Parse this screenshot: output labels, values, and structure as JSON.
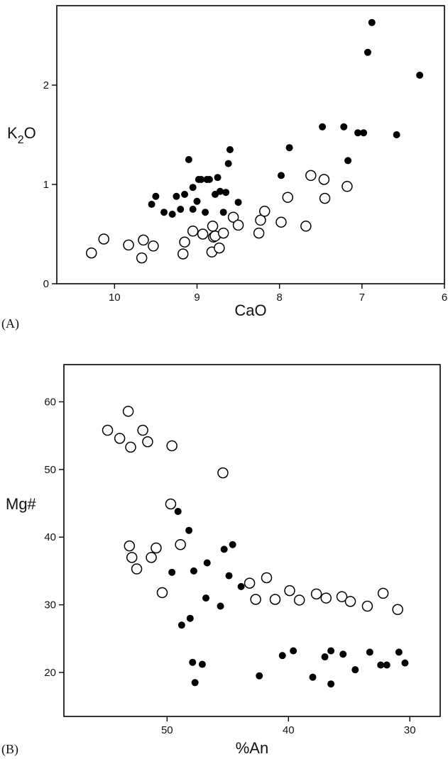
{
  "chart_data": [
    {
      "type": "scatter",
      "panel_label": "(A)",
      "xlabel": "CaO",
      "ylabel_main": "K",
      "ylabel_sub": "2",
      "ylabel_tail": "O",
      "x_reversed": true,
      "xlim": [
        10.7,
        6.0
      ],
      "ylim": [
        0,
        2.8
      ],
      "x_ticks": [
        "10",
        "9",
        "8",
        "7",
        "6"
      ],
      "x_tick_values": [
        10,
        9,
        8,
        7,
        6
      ],
      "y_ticks": [
        "0",
        "1",
        "2"
      ],
      "y_tick_values": [
        0,
        1,
        2
      ],
      "series": [
        {
          "marker": "filled",
          "color": "#000000",
          "x": [
            9.55,
            9.5,
            9.4,
            9.3,
            9.25,
            9.2,
            9.15,
            9.1,
            9.05,
            9.05,
            9.0,
            8.98,
            8.95,
            8.9,
            8.88,
            8.85,
            8.78,
            8.75,
            8.72,
            8.68,
            8.65,
            8.62,
            8.6,
            8.5,
            7.98,
            7.88,
            7.48,
            7.22,
            7.17,
            7.05,
            6.98,
            6.93,
            6.88,
            6.58,
            6.3
          ],
          "y": [
            0.8,
            0.88,
            0.72,
            0.7,
            0.88,
            0.75,
            0.9,
            1.25,
            0.97,
            0.75,
            0.83,
            1.05,
            1.05,
            0.72,
            1.05,
            1.05,
            0.9,
            1.07,
            0.93,
            0.72,
            0.92,
            1.21,
            1.35,
            0.82,
            1.09,
            1.37,
            1.58,
            1.58,
            1.24,
            1.52,
            1.52,
            2.33,
            2.63,
            1.5,
            2.1
          ]
        },
        {
          "marker": "open",
          "color": "#000000",
          "x": [
            10.28,
            10.13,
            9.83,
            9.67,
            9.65,
            9.53,
            9.17,
            9.15,
            9.05,
            8.93,
            8.82,
            8.81,
            8.8,
            8.78,
            8.73,
            8.68,
            8.56,
            8.5,
            8.25,
            8.23,
            8.18,
            7.98,
            7.9,
            7.68,
            7.62,
            7.46,
            7.45,
            7.18
          ],
          "y": [
            0.31,
            0.45,
            0.39,
            0.26,
            0.44,
            0.38,
            0.3,
            0.42,
            0.53,
            0.5,
            0.32,
            0.58,
            0.47,
            0.48,
            0.36,
            0.51,
            0.67,
            0.59,
            0.51,
            0.64,
            0.73,
            0.62,
            0.87,
            0.58,
            1.09,
            1.05,
            0.86,
            0.98
          ]
        }
      ]
    },
    {
      "type": "scatter",
      "panel_label": "(B)",
      "xlabel": "%An",
      "ylabel": "Mg#",
      "x_reversed": true,
      "y_reversed": true,
      "xlim": [
        58.5,
        27.5
      ],
      "ylim": [
        13.5,
        65.5
      ],
      "x_ticks": [
        "50",
        "40",
        "30"
      ],
      "x_tick_values": [
        50,
        40,
        30
      ],
      "y_ticks": [
        "20",
        "30",
        "40",
        "50",
        "60"
      ],
      "y_tick_values": [
        20,
        30,
        40,
        50,
        60
      ],
      "series": [
        {
          "marker": "filled",
          "color": "#000000",
          "x": [
            49.6,
            49.1,
            48.8,
            48.2,
            48.1,
            47.9,
            47.8,
            47.7,
            47.1,
            46.8,
            46.7,
            45.6,
            45.3,
            44.9,
            44.6,
            43.9,
            42.4,
            40.5,
            39.6,
            38.0,
            37.0,
            36.5,
            36.5,
            35.5,
            34.5,
            33.3,
            32.4,
            31.9,
            30.9,
            30.4
          ],
          "y": [
            34.8,
            43.8,
            27.0,
            41.0,
            28.0,
            21.5,
            35.0,
            18.5,
            21.2,
            31.0,
            36.2,
            29.8,
            38.2,
            34.3,
            38.9,
            32.7,
            19.5,
            22.5,
            23.2,
            19.3,
            22.3,
            23.2,
            18.3,
            22.7,
            20.4,
            23.0,
            21.1,
            21.1,
            23.0,
            21.4
          ]
        },
        {
          "marker": "open",
          "color": "#000000",
          "x": [
            54.9,
            53.9,
            53.2,
            53.1,
            53.0,
            52.9,
            52.5,
            52.0,
            51.6,
            51.3,
            50.9,
            50.4,
            49.7,
            49.6,
            48.9,
            45.4,
            43.2,
            42.7,
            41.8,
            41.1,
            39.9,
            39.1,
            37.7,
            36.9,
            35.6,
            34.9,
            33.5,
            32.2,
            31.0
          ],
          "y": [
            55.8,
            54.6,
            58.6,
            38.7,
            53.3,
            37.0,
            35.3,
            55.8,
            54.1,
            37.0,
            38.4,
            31.8,
            44.9,
            53.5,
            38.9,
            49.5,
            33.2,
            30.8,
            34.0,
            30.8,
            32.1,
            30.7,
            31.6,
            31.0,
            31.2,
            30.5,
            29.8,
            31.7,
            29.3
          ]
        }
      ]
    }
  ]
}
